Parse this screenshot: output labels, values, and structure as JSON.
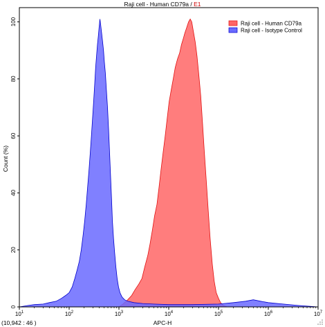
{
  "title": {
    "prefix": "Raji cell - Human CD79a / ",
    "suffix": "E1"
  },
  "coord_readout": "(10,942 : 46 )",
  "chart_data": {
    "type": "area",
    "title": "Raji cell - Human CD79a / E1",
    "xlabel": "APC-H",
    "ylabel": "Count (%)",
    "x_scale": "log",
    "xlim": [
      10,
      10000000
    ],
    "ylim": [
      0,
      105
    ],
    "x_ticks": [
      {
        "value": 10,
        "base": "10",
        "exp": "1"
      },
      {
        "value": 100,
        "base": "10",
        "exp": "2"
      },
      {
        "value": 1000,
        "base": "10",
        "exp": "3"
      },
      {
        "value": 10000,
        "base": "10",
        "exp": "4"
      },
      {
        "value": 100000,
        "base": "10",
        "exp": "5"
      },
      {
        "value": 1000000,
        "base": "10",
        "exp": "6"
      },
      {
        "value": 10000000,
        "base": "10",
        "exp": "7"
      }
    ],
    "y_ticks": [
      0,
      20,
      40,
      60,
      80,
      100
    ],
    "grid": false,
    "legend_position": "top-right",
    "series": [
      {
        "name": "Raji cell - Human CD79a",
        "color": "#ff6666",
        "edge_color": "#e01010",
        "points": [
          [
            1000,
            0
          ],
          [
            1200,
            1
          ],
          [
            1500,
            2.5
          ],
          [
            1800,
            4
          ],
          [
            2100,
            6
          ],
          [
            2500,
            8
          ],
          [
            2900,
            10
          ],
          [
            3300,
            14
          ],
          [
            3800,
            18
          ],
          [
            4200,
            22
          ],
          [
            4700,
            27
          ],
          [
            5200,
            32
          ],
          [
            5800,
            36
          ],
          [
            6400,
            42
          ],
          [
            7000,
            48
          ],
          [
            7700,
            54
          ],
          [
            8500,
            60
          ],
          [
            9300,
            66
          ],
          [
            10200,
            72
          ],
          [
            11200,
            76
          ],
          [
            12300,
            80
          ],
          [
            13500,
            84
          ],
          [
            15000,
            87
          ],
          [
            16500,
            89
          ],
          [
            18000,
            92
          ],
          [
            19500,
            94
          ],
          [
            21000,
            96
          ],
          [
            23000,
            98
          ],
          [
            25000,
            100
          ],
          [
            27000,
            101
          ],
          [
            29000,
            100
          ],
          [
            31000,
            97
          ],
          [
            34000,
            93
          ],
          [
            37000,
            88
          ],
          [
            40000,
            82
          ],
          [
            44000,
            74
          ],
          [
            48000,
            64
          ],
          [
            52000,
            54
          ],
          [
            57000,
            44
          ],
          [
            62000,
            34
          ],
          [
            68000,
            24
          ],
          [
            75000,
            15
          ],
          [
            82000,
            9
          ],
          [
            90000,
            5
          ],
          [
            100000,
            3
          ],
          [
            110000,
            1.5
          ],
          [
            125000,
            0.5
          ],
          [
            150000,
            0
          ]
        ]
      },
      {
        "name": "Raji cell - Isotype Control",
        "color": "#6a6aff",
        "edge_color": "#0000cc",
        "points": [
          [
            10,
            0
          ],
          [
            15,
            0.5
          ],
          [
            20,
            0.8
          ],
          [
            30,
            1
          ],
          [
            40,
            1.5
          ],
          [
            55,
            2
          ],
          [
            70,
            3
          ],
          [
            85,
            4
          ],
          [
            100,
            5
          ],
          [
            115,
            7
          ],
          [
            130,
            10
          ],
          [
            145,
            13
          ],
          [
            160,
            16
          ],
          [
            175,
            20
          ],
          [
            190,
            25
          ],
          [
            205,
            30
          ],
          [
            220,
            36
          ],
          [
            235,
            42
          ],
          [
            250,
            48
          ],
          [
            265,
            54
          ],
          [
            280,
            60
          ],
          [
            295,
            66
          ],
          [
            310,
            72
          ],
          [
            325,
            78
          ],
          [
            340,
            84
          ],
          [
            355,
            88
          ],
          [
            370,
            92
          ],
          [
            385,
            95
          ],
          [
            400,
            98
          ],
          [
            415,
            101
          ],
          [
            430,
            99
          ],
          [
            450,
            96
          ],
          [
            470,
            93
          ],
          [
            490,
            90
          ],
          [
            510,
            86
          ],
          [
            535,
            82
          ],
          [
            560,
            76
          ],
          [
            590,
            70
          ],
          [
            620,
            62
          ],
          [
            650,
            54
          ],
          [
            680,
            46
          ],
          [
            710,
            38
          ],
          [
            740,
            30
          ],
          [
            780,
            24
          ],
          [
            820,
            19
          ],
          [
            870,
            14
          ],
          [
            920,
            10
          ],
          [
            980,
            7
          ],
          [
            1050,
            5
          ],
          [
            1150,
            3.5
          ],
          [
            1300,
            2.5
          ],
          [
            1500,
            2
          ],
          [
            2000,
            1.5
          ],
          [
            3000,
            1.2
          ],
          [
            5000,
            1
          ],
          [
            10000,
            0.8
          ],
          [
            30000,
            0.8
          ],
          [
            100000,
            1
          ],
          [
            200000,
            1.5
          ],
          [
            350000,
            2
          ],
          [
            500000,
            2.5
          ],
          [
            700000,
            2
          ],
          [
            1000000,
            1.5
          ],
          [
            2000000,
            1
          ],
          [
            4000000,
            0.5
          ],
          [
            10000000,
            0
          ]
        ]
      }
    ]
  }
}
